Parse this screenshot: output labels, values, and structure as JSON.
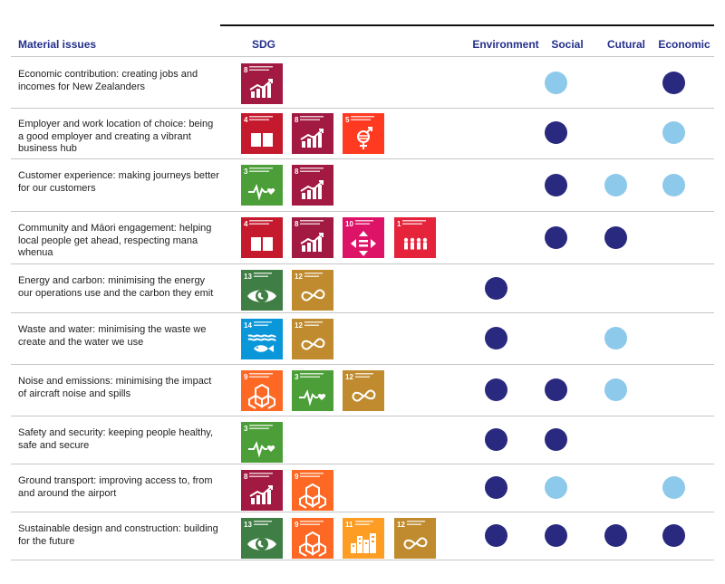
{
  "headers": {
    "material_issues": "Material issues",
    "sdg": "SDG",
    "environment": "Environment",
    "social": "Social",
    "cultural": "Cutural",
    "economic": "Economic"
  },
  "sdg_colors": {
    "1": "#e5243b",
    "3": "#4c9f38",
    "4": "#c5192d",
    "5": "#ff3a21",
    "8": "#a21942",
    "9": "#fd6925",
    "10": "#dd1367",
    "11": "#fd9d24",
    "12": "#bf8b2e",
    "13": "#3f7e44",
    "14": "#0a97d9"
  },
  "sdg_icons": {
    "1": "people-icon",
    "3": "heartbeat-icon",
    "4": "book-icon",
    "5": "gender-icon",
    "8": "growth-chart-icon",
    "9": "cubes-icon",
    "10": "equality-arrows-icon",
    "11": "city-icon",
    "12": "infinity-icon",
    "13": "eye-globe-icon",
    "14": "fish-icon"
  },
  "legend_colors": {
    "full": "#29297f",
    "partial": "#8dc9ea"
  },
  "rows": [
    {
      "issue": "Economic contribution: creating jobs and incomes for New Zealanders",
      "sdgs": [
        8
      ],
      "environment": "",
      "social": "partial",
      "cultural": "",
      "economic": "full"
    },
    {
      "issue": "Employer and work location of choice: being a good employer and creating a vibrant business hub",
      "sdgs": [
        4,
        8,
        5
      ],
      "environment": "",
      "social": "full",
      "cultural": "",
      "economic": "partial"
    },
    {
      "issue": "Customer experience: making journeys better for our customers",
      "sdgs": [
        3,
        8
      ],
      "environment": "",
      "social": "full",
      "cultural": "partial",
      "economic": "partial"
    },
    {
      "issue": "Community and Māori engagement: helping local people get ahead, respecting mana whenua",
      "sdgs": [
        4,
        8,
        10,
        1
      ],
      "environment": "",
      "social": "full",
      "cultural": "full",
      "economic": ""
    },
    {
      "issue": "Energy and carbon: minimising the energy our operations use and the carbon they emit",
      "sdgs": [
        13,
        12
      ],
      "environment": "full",
      "social": "",
      "cultural": "",
      "economic": ""
    },
    {
      "issue": "Waste and water: minimising the waste we create and the water we use",
      "sdgs": [
        14,
        12
      ],
      "environment": "full",
      "social": "",
      "cultural": "partial",
      "economic": ""
    },
    {
      "issue": "Noise and emissions: minimising the impact of aircraft noise and spills",
      "sdgs": [
        9,
        3,
        12
      ],
      "environment": "full",
      "social": "full",
      "cultural": "partial",
      "economic": ""
    },
    {
      "issue": "Safety and security: keeping people healthy, safe and secure",
      "sdgs": [
        3
      ],
      "environment": "full",
      "social": "full",
      "cultural": "",
      "economic": ""
    },
    {
      "issue": "Ground transport: improving access to, from and around the airport",
      "sdgs": [
        8,
        9
      ],
      "environment": "full",
      "social": "partial",
      "cultural": "",
      "economic": "partial"
    },
    {
      "issue": "Sustainable design and construction: building for the future",
      "sdgs": [
        13,
        9,
        11,
        12
      ],
      "environment": "full",
      "social": "full",
      "cultural": "full",
      "economic": "full"
    }
  ]
}
